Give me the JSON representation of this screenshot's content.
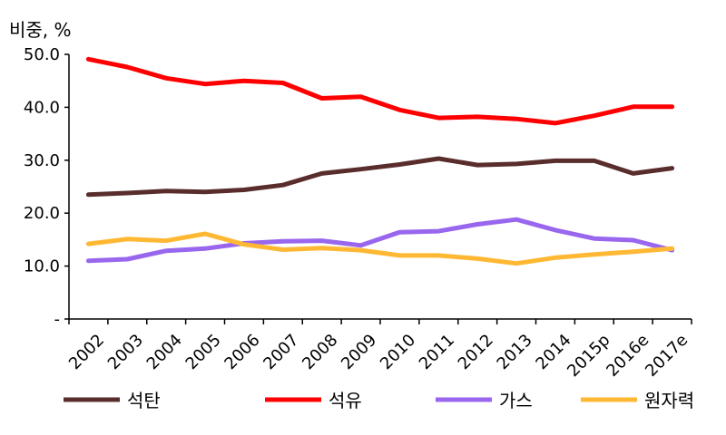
{
  "chart_data": {
    "type": "line",
    "ylabel": "비중, %",
    "ylim": [
      0,
      50
    ],
    "y_ticks": [
      {
        "value": 0,
        "label": "-"
      },
      {
        "value": 10,
        "label": "10.0"
      },
      {
        "value": 20,
        "label": "20.0"
      },
      {
        "value": 30,
        "label": "30.0"
      },
      {
        "value": 40,
        "label": "40.0"
      },
      {
        "value": 50,
        "label": "50.0"
      }
    ],
    "categories": [
      "2002",
      "2003",
      "2004",
      "2005",
      "2006",
      "2007",
      "2008",
      "2009",
      "2010",
      "2011",
      "2012",
      "2013",
      "2014",
      "2015p",
      "2016e",
      "2017e"
    ],
    "grid": false,
    "legend_position": "bottom",
    "series": [
      {
        "name": "석탄",
        "color": "#5a2d2d",
        "values": [
          23.5,
          23.8,
          24.2,
          24.0,
          24.4,
          25.3,
          27.5,
          28.3,
          29.2,
          30.3,
          29.1,
          29.3,
          29.9,
          29.9,
          27.5,
          28.5
        ]
      },
      {
        "name": "석유",
        "color": "#ff0000",
        "values": [
          49.1,
          47.6,
          45.5,
          44.4,
          45.0,
          44.6,
          41.7,
          42.0,
          39.5,
          38.0,
          38.2,
          37.8,
          37.0,
          38.4,
          40.1,
          40.1
        ]
      },
      {
        "name": "가스",
        "color": "#9966ee",
        "values": [
          11.0,
          11.3,
          12.9,
          13.3,
          14.3,
          14.7,
          14.8,
          13.9,
          16.4,
          16.6,
          17.9,
          18.8,
          16.8,
          15.2,
          14.9,
          13.0
        ]
      },
      {
        "name": "원자력",
        "color": "#ffb833",
        "values": [
          14.2,
          15.1,
          14.8,
          16.1,
          14.1,
          13.1,
          13.4,
          13.0,
          12.0,
          12.0,
          11.4,
          10.5,
          11.6,
          12.2,
          12.7,
          13.3
        ]
      }
    ]
  }
}
